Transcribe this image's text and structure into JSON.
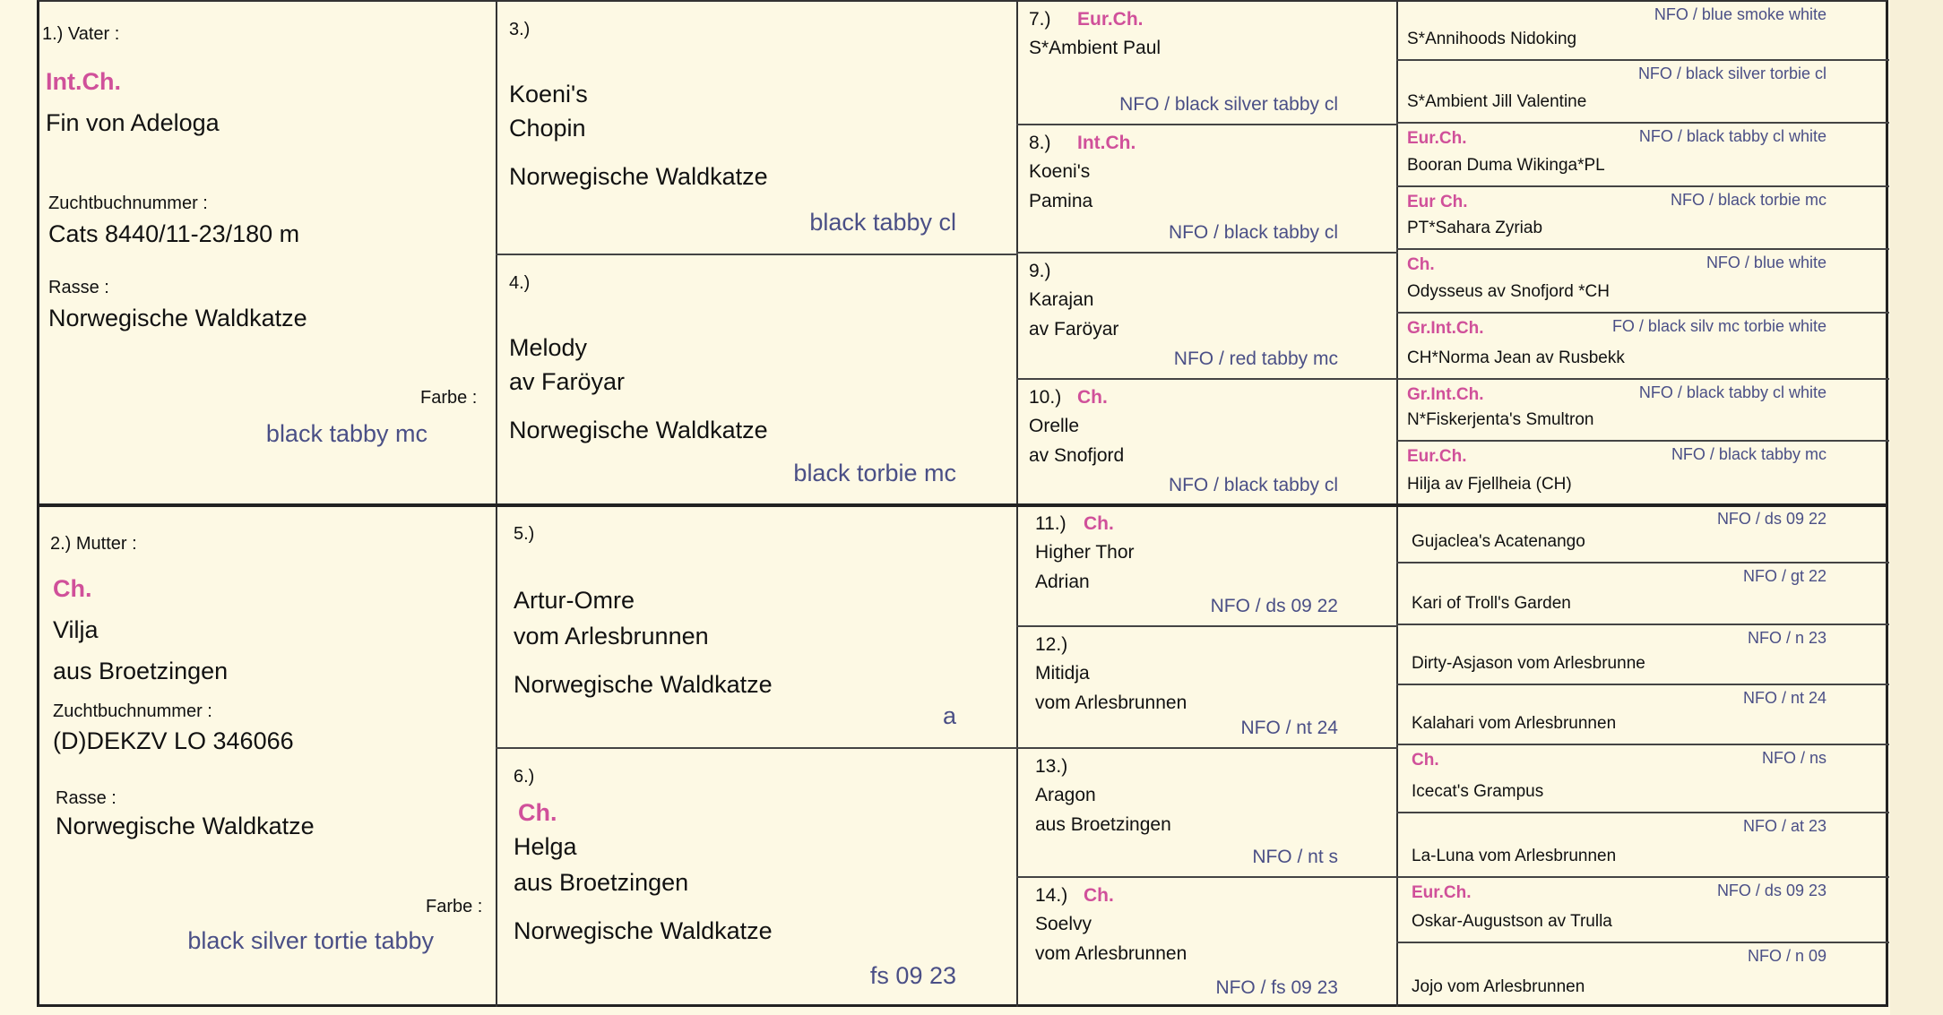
{
  "father": {
    "number_label": "1.) Vater :",
    "title": "Int.Ch.",
    "name": "Fin von Adeloga",
    "studbook_label": "Zuchtbuchnummer :",
    "studbook": "Cats 8440/11-23/180 m",
    "breed_label": "Rasse :",
    "breed": "Norwegische Waldkatze",
    "color_label": "Farbe :",
    "color": "black tabby mc"
  },
  "mother": {
    "number_label": "2.) Mutter :",
    "title": "Ch.",
    "name_line1": "Vilja",
    "name_line2": "aus Broetzingen",
    "studbook_label": "Zuchtbuchnummer :",
    "studbook": "(D)DEKZV LO 346066",
    "breed_label": "Rasse :",
    "breed": "Norwegische Waldkatze",
    "color_label": "Farbe :",
    "color": "black silver tortie tabby"
  },
  "grandparents": [
    {
      "number": "3.)",
      "title": "",
      "name_line1": "Koeni's",
      "name_line2": "Chopin",
      "breed": "Norwegische Waldkatze",
      "color": "black tabby cl"
    },
    {
      "number": "4.)",
      "title": "",
      "name_line1": "Melody",
      "name_line2": "av Faröyar",
      "breed": "Norwegische Waldkatze",
      "color": "black torbie mc"
    },
    {
      "number": "5.)",
      "title": "",
      "name_line1": "Artur-Omre",
      "name_line2": "vom Arlesbrunnen",
      "breed": "Norwegische Waldkatze",
      "color": "a"
    },
    {
      "number": "6.)",
      "title": "Ch.",
      "name_line1": "Helga",
      "name_line2": "aus Broetzingen",
      "breed": "Norwegische Waldkatze",
      "color": "fs 09 23"
    }
  ],
  "great_grandparents": [
    {
      "number": "7.)",
      "title": "Eur.Ch.",
      "name_line1": "S*Ambient Paul",
      "name_line2": "",
      "color": "NFO / black silver tabby cl"
    },
    {
      "number": "8.)",
      "title": "Int.Ch.",
      "name_line1": "Koeni's",
      "name_line2": "Pamina",
      "color": "NFO / black tabby cl"
    },
    {
      "number": "9.)",
      "title": "",
      "name_line1": "Karajan",
      "name_line2": "av Faröyar",
      "color": "NFO / red tabby mc"
    },
    {
      "number": "10.)",
      "title": "Ch.",
      "name_line1": "Orelle",
      "name_line2": "av Snofjord",
      "color": "NFO / black tabby cl"
    },
    {
      "number": "11.)",
      "title": "Ch.",
      "name_line1": "Higher Thor",
      "name_line2": "Adrian",
      "color": "NFO / ds 09 22"
    },
    {
      "number": "12.)",
      "title": "",
      "name_line1": "Mitidja",
      "name_line2": "vom Arlesbrunnen",
      "color": "NFO / nt 24"
    },
    {
      "number": "13.)",
      "title": "",
      "name_line1": "Aragon",
      "name_line2": "aus Broetzingen",
      "color": "NFO / nt s"
    },
    {
      "number": "14.)",
      "title": "Ch.",
      "name_line1": "Soelvy",
      "name_line2": "vom Arlesbrunnen",
      "color": "NFO / fs 09 23"
    }
  ],
  "great_great_grandparents": [
    {
      "title": "",
      "name": "S*Annihoods Nidoking",
      "color": "NFO / blue smoke white"
    },
    {
      "title": "",
      "name": "S*Ambient Jill Valentine",
      "color": "NFO / black silver torbie cl"
    },
    {
      "title": "Eur.Ch.",
      "name": "Booran Duma Wikinga*PL",
      "color": "NFO / black tabby cl white"
    },
    {
      "title": "Eur Ch.",
      "name": "PT*Sahara Zyriab",
      "color": "NFO / black torbie mc"
    },
    {
      "title": "Ch.",
      "name": "Odysseus av Snofjord *CH",
      "color": "NFO / blue white"
    },
    {
      "title": "Gr.Int.Ch.",
      "name": "CH*Norma Jean av Rusbekk",
      "color": "FO / black silv mc torbie white"
    },
    {
      "title": "Gr.Int.Ch.",
      "name": "N*Fiskerjenta's Smultron",
      "color": "NFO / black tabby cl white"
    },
    {
      "title": "Eur.Ch.",
      "name": "Hilja av Fjellheia (CH)",
      "color": "NFO / black tabby mc"
    },
    {
      "title": "",
      "name": "Gujaclea's Acatenango",
      "color": "NFO / ds 09 22"
    },
    {
      "title": "",
      "name": "Kari of Troll's Garden",
      "color": "NFO / gt 22"
    },
    {
      "title": "",
      "name": "Dirty-Asjason vom Arlesbrunne",
      "color": "NFO / n 23"
    },
    {
      "title": "",
      "name": "Kalahari vom Arlesbrunnen",
      "color": "NFO / nt 24"
    },
    {
      "title": "Ch.",
      "name": "Icecat's Grampus",
      "color": "NFO / ns"
    },
    {
      "title": "",
      "name": "La-Luna vom Arlesbrunnen",
      "color": "NFO / at 23"
    },
    {
      "title": "Eur.Ch.",
      "name": "Oskar-Augustson av Trulla",
      "color": "NFO / ds 09 23"
    },
    {
      "title": "",
      "name": "Jojo vom Arlesbrunnen",
      "color": "NFO / n 09"
    }
  ],
  "colors": {
    "title_pink": "#d0509a",
    "color_text": "#4a4f86",
    "paper": "#fdf9e4"
  }
}
